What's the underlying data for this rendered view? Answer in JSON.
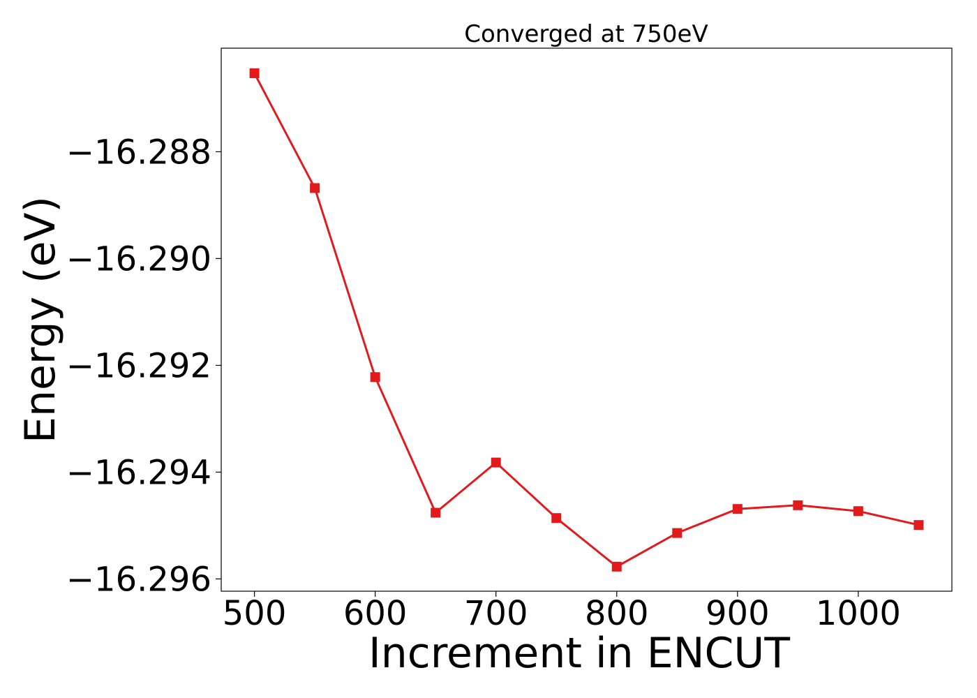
{
  "chart_data": {
    "type": "line",
    "title": "Converged at 750eV",
    "xlabel": "Increment in ENCUT",
    "ylabel": "Energy (eV)",
    "x": [
      500,
      550,
      600,
      650,
      700,
      750,
      800,
      850,
      900,
      950,
      1000,
      1050
    ],
    "series": [
      {
        "values": [
          -16.28653,
          -16.28868,
          -16.29222,
          -16.29476,
          -16.29382,
          -16.29486,
          -16.29577,
          -16.29514,
          -16.29469,
          -16.29462,
          -16.29473,
          -16.29499
        ],
        "color": "#e31a1c",
        "marker": "square"
      }
    ],
    "xlim": [
      472.5,
      1077.5
    ],
    "ylim": [
      -16.29623,
      -16.28606
    ],
    "xticks": [
      500,
      600,
      700,
      800,
      900,
      1000
    ],
    "xtick_labels": [
      "500",
      "600",
      "700",
      "800",
      "900",
      "1000"
    ],
    "yticks": [
      -16.288,
      -16.29,
      -16.292,
      -16.294,
      -16.296
    ],
    "ytick_labels": [
      "−16.288",
      "−16.290",
      "−16.292",
      "−16.294",
      "−16.296"
    ],
    "grid": false,
    "legend": "none"
  }
}
